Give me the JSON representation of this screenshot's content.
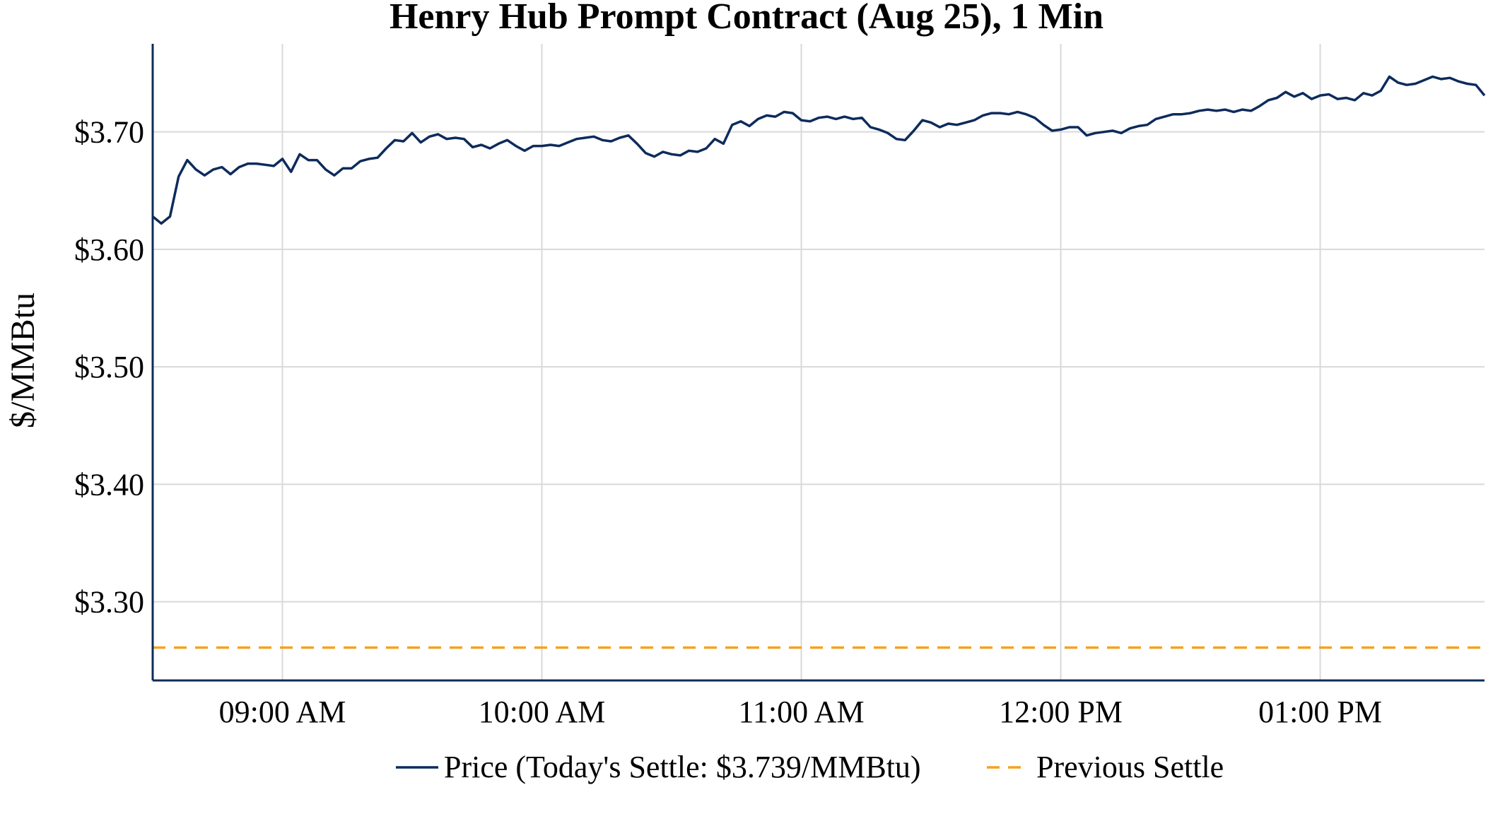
{
  "chart_data": {
    "type": "line",
    "title": "Henry Hub Prompt Contract (Aug 25), 1 Min",
    "xlabel": "",
    "ylabel": "$/MMBtu",
    "ylim": [
      3.233,
      3.775
    ],
    "xlim": [
      "08:30",
      "13:38"
    ],
    "grid": true,
    "legend_position": "bottom",
    "y_ticks": [
      {
        "value": 3.3,
        "label": "$3.30"
      },
      {
        "value": 3.4,
        "label": "$3.40"
      },
      {
        "value": 3.5,
        "label": "$3.50"
      },
      {
        "value": 3.6,
        "label": "$3.60"
      },
      {
        "value": 3.7,
        "label": "$3.70"
      }
    ],
    "x_ticks": [
      {
        "value": "09:00",
        "label": "09:00 AM"
      },
      {
        "value": "10:00",
        "label": "10:00 AM"
      },
      {
        "value": "11:00",
        "label": "11:00 AM"
      },
      {
        "value": "12:00",
        "label": "12:00 PM"
      },
      {
        "value": "13:00",
        "label": "01:00 PM"
      }
    ],
    "series": [
      {
        "name": "Price (Today's Settle: $3.739/MMBtu)",
        "color": "#0d2b5c",
        "style": "solid",
        "x": [
          "08:30",
          "08:32",
          "08:34",
          "08:36",
          "08:38",
          "08:40",
          "08:42",
          "08:44",
          "08:46",
          "08:48",
          "08:50",
          "08:52",
          "08:54",
          "08:56",
          "08:58",
          "09:00",
          "09:02",
          "09:04",
          "09:06",
          "09:08",
          "09:10",
          "09:12",
          "09:14",
          "09:16",
          "09:18",
          "09:20",
          "09:22",
          "09:24",
          "09:26",
          "09:28",
          "09:30",
          "09:32",
          "09:34",
          "09:36",
          "09:38",
          "09:40",
          "09:42",
          "09:44",
          "09:46",
          "09:48",
          "09:50",
          "09:52",
          "09:54",
          "09:56",
          "09:58",
          "10:00",
          "10:02",
          "10:04",
          "10:06",
          "10:08",
          "10:10",
          "10:12",
          "10:14",
          "10:16",
          "10:18",
          "10:20",
          "10:22",
          "10:24",
          "10:26",
          "10:28",
          "10:30",
          "10:32",
          "10:34",
          "10:36",
          "10:38",
          "10:40",
          "10:42",
          "10:44",
          "10:46",
          "10:48",
          "10:50",
          "10:52",
          "10:54",
          "10:56",
          "10:58",
          "11:00",
          "11:02",
          "11:04",
          "11:06",
          "11:08",
          "11:10",
          "11:12",
          "11:14",
          "11:16",
          "11:18",
          "11:20",
          "11:22",
          "11:24",
          "11:26",
          "11:28",
          "11:30",
          "11:32",
          "11:34",
          "11:36",
          "11:38",
          "11:40",
          "11:42",
          "11:44",
          "11:46",
          "11:48",
          "11:50",
          "11:52",
          "11:54",
          "11:56",
          "11:58",
          "12:00",
          "12:02",
          "12:04",
          "12:06",
          "12:08",
          "12:10",
          "12:12",
          "12:14",
          "12:16",
          "12:18",
          "12:20",
          "12:22",
          "12:24",
          "12:26",
          "12:28",
          "12:30",
          "12:32",
          "12:34",
          "12:36",
          "12:38",
          "12:40",
          "12:42",
          "12:44",
          "12:46",
          "12:48",
          "12:50",
          "12:52",
          "12:54",
          "12:56",
          "12:58",
          "13:00",
          "13:02",
          "13:04",
          "13:06",
          "13:08",
          "13:10",
          "13:12",
          "13:14",
          "13:16",
          "13:18",
          "13:20",
          "13:22",
          "13:24",
          "13:26",
          "13:28",
          "13:30",
          "13:32",
          "13:34",
          "13:36",
          "13:38"
        ],
        "values": [
          3.628,
          3.622,
          3.628,
          3.662,
          3.676,
          3.668,
          3.663,
          3.668,
          3.67,
          3.664,
          3.67,
          3.673,
          3.673,
          3.672,
          3.671,
          3.677,
          3.666,
          3.681,
          3.676,
          3.676,
          3.668,
          3.663,
          3.669,
          3.669,
          3.675,
          3.677,
          3.678,
          3.686,
          3.693,
          3.692,
          3.699,
          3.691,
          3.696,
          3.698,
          3.694,
          3.695,
          3.694,
          3.687,
          3.689,
          3.686,
          3.69,
          3.693,
          3.688,
          3.684,
          3.688,
          3.688,
          3.689,
          3.688,
          3.691,
          3.694,
          3.695,
          3.696,
          3.693,
          3.692,
          3.695,
          3.697,
          3.69,
          3.682,
          3.679,
          3.683,
          3.681,
          3.68,
          3.684,
          3.683,
          3.686,
          3.694,
          3.69,
          3.706,
          3.709,
          3.705,
          3.711,
          3.714,
          3.713,
          3.717,
          3.716,
          3.71,
          3.709,
          3.712,
          3.713,
          3.711,
          3.713,
          3.711,
          3.712,
          3.704,
          3.702,
          3.699,
          3.694,
          3.693,
          3.701,
          3.71,
          3.708,
          3.704,
          3.707,
          3.706,
          3.708,
          3.71,
          3.714,
          3.716,
          3.716,
          3.715,
          3.717,
          3.715,
          3.712,
          3.706,
          3.701,
          3.702,
          3.704,
          3.704,
          3.697,
          3.699,
          3.7,
          3.701,
          3.699,
          3.703,
          3.705,
          3.706,
          3.711,
          3.713,
          3.715,
          3.715,
          3.716,
          3.718,
          3.719,
          3.718,
          3.719,
          3.717,
          3.719,
          3.718,
          3.722,
          3.727,
          3.729,
          3.734,
          3.73,
          3.733,
          3.728,
          3.731,
          3.732,
          3.728,
          3.729,
          3.727,
          3.733,
          3.731,
          3.735,
          3.747,
          3.742,
          3.74,
          3.741,
          3.744,
          3.747,
          3.745,
          3.746,
          3.743,
          3.741,
          3.74,
          3.731
        ]
      },
      {
        "name": "Previous Settle",
        "color": "#f5a21e",
        "style": "dashed",
        "value": 3.261
      }
    ]
  }
}
